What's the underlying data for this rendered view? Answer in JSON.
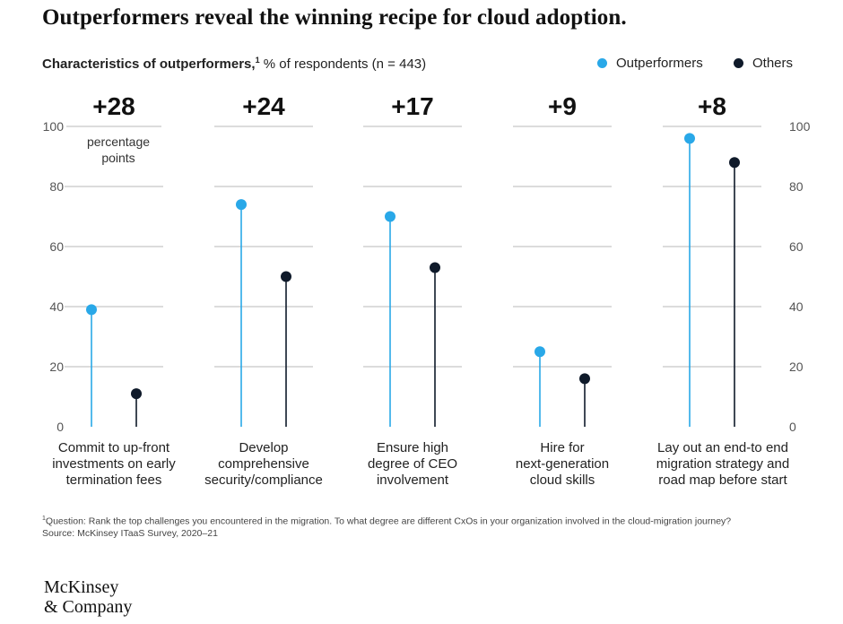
{
  "title": "Outperformers reveal the winning recipe for cloud adoption.",
  "subtitle": {
    "bold": "Characteristics of outperformers,",
    "footnote_mark": "1",
    "rest": " % of respondents (n = 443)"
  },
  "legend": {
    "outperformers": "Outperformers",
    "others": "Others"
  },
  "colors": {
    "outperformers": "#29a8e8",
    "others": "#0f1a2a",
    "gridline": "#b9b9b9"
  },
  "chart_data": {
    "type": "dot-stem",
    "title": "Characteristics of outperformers",
    "ylabel": "% of respondents",
    "ylim": [
      0,
      100
    ],
    "yticks": [
      0,
      20,
      40,
      60,
      80,
      100
    ],
    "grid": true,
    "series": [
      {
        "name": "Outperformers",
        "values": [
          39,
          74,
          70,
          25,
          96
        ]
      },
      {
        "name": "Others",
        "values": [
          11,
          50,
          53,
          16,
          88
        ]
      }
    ],
    "groups": [
      {
        "diff": "+28",
        "label": [
          "Commit to up-front",
          "investments on early",
          "termination fees"
        ]
      },
      {
        "diff": "+24",
        "label": [
          "Develop",
          "comprehensive",
          "security/compliance"
        ]
      },
      {
        "diff": "+17",
        "label": [
          "Ensure high",
          "degree of CEO",
          "involvement"
        ]
      },
      {
        "diff": "+9",
        "label": [
          "Hire for",
          "next-generation",
          "cloud skills"
        ]
      },
      {
        "diff": "+8",
        "label": [
          "Lay out an end-to end",
          "migration strategy and",
          "road map before start"
        ]
      }
    ],
    "annotation": [
      "percentage",
      "points"
    ]
  },
  "footnote": {
    "mark": "1",
    "text": "Question: Rank the top challenges you encountered in the migration. To what degree are different CxOs in your organization involved in the cloud-migration journey?",
    "source": "Source: McKinsey ITaaS Survey, 2020–21"
  },
  "logo": {
    "line1": "McKinsey",
    "line2": "& Company"
  }
}
